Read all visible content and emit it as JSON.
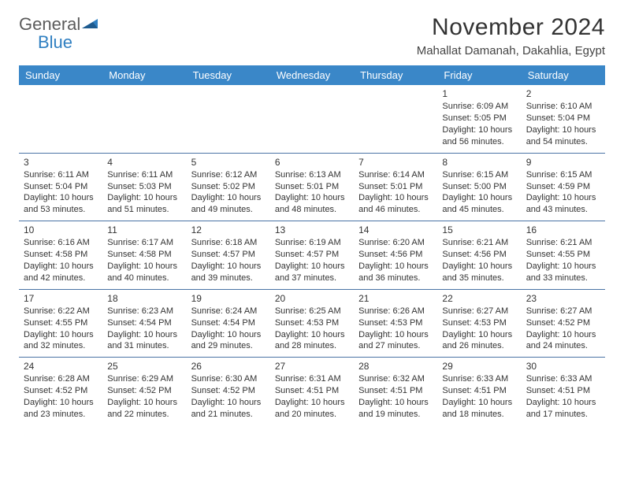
{
  "logo": {
    "text1": "General",
    "text2": "Blue"
  },
  "header": {
    "title": "November 2024",
    "location": "Mahallat Damanah, Dakahlia, Egypt"
  },
  "colors": {
    "header_bg": "#3a87c8",
    "header_fg": "#ffffff",
    "row_border": "#4a73a5",
    "logo_blue": "#2f7fc1",
    "text": "#333333"
  },
  "weekdays": [
    "Sunday",
    "Monday",
    "Tuesday",
    "Wednesday",
    "Thursday",
    "Friday",
    "Saturday"
  ],
  "weeks": [
    [
      null,
      null,
      null,
      null,
      null,
      {
        "d": "1",
        "sr": "Sunrise: 6:09 AM",
        "ss": "Sunset: 5:05 PM",
        "dl": "Daylight: 10 hours and 56 minutes."
      },
      {
        "d": "2",
        "sr": "Sunrise: 6:10 AM",
        "ss": "Sunset: 5:04 PM",
        "dl": "Daylight: 10 hours and 54 minutes."
      }
    ],
    [
      {
        "d": "3",
        "sr": "Sunrise: 6:11 AM",
        "ss": "Sunset: 5:04 PM",
        "dl": "Daylight: 10 hours and 53 minutes."
      },
      {
        "d": "4",
        "sr": "Sunrise: 6:11 AM",
        "ss": "Sunset: 5:03 PM",
        "dl": "Daylight: 10 hours and 51 minutes."
      },
      {
        "d": "5",
        "sr": "Sunrise: 6:12 AM",
        "ss": "Sunset: 5:02 PM",
        "dl": "Daylight: 10 hours and 49 minutes."
      },
      {
        "d": "6",
        "sr": "Sunrise: 6:13 AM",
        "ss": "Sunset: 5:01 PM",
        "dl": "Daylight: 10 hours and 48 minutes."
      },
      {
        "d": "7",
        "sr": "Sunrise: 6:14 AM",
        "ss": "Sunset: 5:01 PM",
        "dl": "Daylight: 10 hours and 46 minutes."
      },
      {
        "d": "8",
        "sr": "Sunrise: 6:15 AM",
        "ss": "Sunset: 5:00 PM",
        "dl": "Daylight: 10 hours and 45 minutes."
      },
      {
        "d": "9",
        "sr": "Sunrise: 6:15 AM",
        "ss": "Sunset: 4:59 PM",
        "dl": "Daylight: 10 hours and 43 minutes."
      }
    ],
    [
      {
        "d": "10",
        "sr": "Sunrise: 6:16 AM",
        "ss": "Sunset: 4:58 PM",
        "dl": "Daylight: 10 hours and 42 minutes."
      },
      {
        "d": "11",
        "sr": "Sunrise: 6:17 AM",
        "ss": "Sunset: 4:58 PM",
        "dl": "Daylight: 10 hours and 40 minutes."
      },
      {
        "d": "12",
        "sr": "Sunrise: 6:18 AM",
        "ss": "Sunset: 4:57 PM",
        "dl": "Daylight: 10 hours and 39 minutes."
      },
      {
        "d": "13",
        "sr": "Sunrise: 6:19 AM",
        "ss": "Sunset: 4:57 PM",
        "dl": "Daylight: 10 hours and 37 minutes."
      },
      {
        "d": "14",
        "sr": "Sunrise: 6:20 AM",
        "ss": "Sunset: 4:56 PM",
        "dl": "Daylight: 10 hours and 36 minutes."
      },
      {
        "d": "15",
        "sr": "Sunrise: 6:21 AM",
        "ss": "Sunset: 4:56 PM",
        "dl": "Daylight: 10 hours and 35 minutes."
      },
      {
        "d": "16",
        "sr": "Sunrise: 6:21 AM",
        "ss": "Sunset: 4:55 PM",
        "dl": "Daylight: 10 hours and 33 minutes."
      }
    ],
    [
      {
        "d": "17",
        "sr": "Sunrise: 6:22 AM",
        "ss": "Sunset: 4:55 PM",
        "dl": "Daylight: 10 hours and 32 minutes."
      },
      {
        "d": "18",
        "sr": "Sunrise: 6:23 AM",
        "ss": "Sunset: 4:54 PM",
        "dl": "Daylight: 10 hours and 31 minutes."
      },
      {
        "d": "19",
        "sr": "Sunrise: 6:24 AM",
        "ss": "Sunset: 4:54 PM",
        "dl": "Daylight: 10 hours and 29 minutes."
      },
      {
        "d": "20",
        "sr": "Sunrise: 6:25 AM",
        "ss": "Sunset: 4:53 PM",
        "dl": "Daylight: 10 hours and 28 minutes."
      },
      {
        "d": "21",
        "sr": "Sunrise: 6:26 AM",
        "ss": "Sunset: 4:53 PM",
        "dl": "Daylight: 10 hours and 27 minutes."
      },
      {
        "d": "22",
        "sr": "Sunrise: 6:27 AM",
        "ss": "Sunset: 4:53 PM",
        "dl": "Daylight: 10 hours and 26 minutes."
      },
      {
        "d": "23",
        "sr": "Sunrise: 6:27 AM",
        "ss": "Sunset: 4:52 PM",
        "dl": "Daylight: 10 hours and 24 minutes."
      }
    ],
    [
      {
        "d": "24",
        "sr": "Sunrise: 6:28 AM",
        "ss": "Sunset: 4:52 PM",
        "dl": "Daylight: 10 hours and 23 minutes."
      },
      {
        "d": "25",
        "sr": "Sunrise: 6:29 AM",
        "ss": "Sunset: 4:52 PM",
        "dl": "Daylight: 10 hours and 22 minutes."
      },
      {
        "d": "26",
        "sr": "Sunrise: 6:30 AM",
        "ss": "Sunset: 4:52 PM",
        "dl": "Daylight: 10 hours and 21 minutes."
      },
      {
        "d": "27",
        "sr": "Sunrise: 6:31 AM",
        "ss": "Sunset: 4:51 PM",
        "dl": "Daylight: 10 hours and 20 minutes."
      },
      {
        "d": "28",
        "sr": "Sunrise: 6:32 AM",
        "ss": "Sunset: 4:51 PM",
        "dl": "Daylight: 10 hours and 19 minutes."
      },
      {
        "d": "29",
        "sr": "Sunrise: 6:33 AM",
        "ss": "Sunset: 4:51 PM",
        "dl": "Daylight: 10 hours and 18 minutes."
      },
      {
        "d": "30",
        "sr": "Sunrise: 6:33 AM",
        "ss": "Sunset: 4:51 PM",
        "dl": "Daylight: 10 hours and 17 minutes."
      }
    ]
  ]
}
